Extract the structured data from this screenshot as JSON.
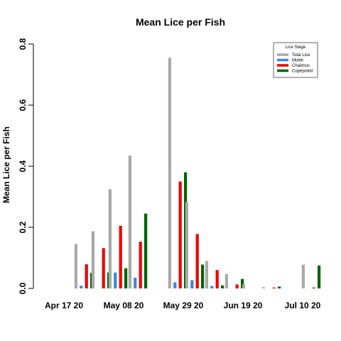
{
  "chart_data": {
    "type": "bar",
    "title": "Mean Lice per Fish",
    "xlabel": "",
    "ylabel": "Mean Lice per Fish",
    "ylim": [
      0,
      0.8
    ],
    "yticks": [
      "0.0",
      "0.2",
      "0.4",
      "0.6",
      "0.8"
    ],
    "xlim": [
      "2020-04-10",
      "2020-07-17"
    ],
    "xticks": [
      {
        "date": "2020-04-17",
        "label": "Apr 17 20"
      },
      {
        "date": "2020-05-08",
        "label": "May 08 20"
      },
      {
        "date": "2020-05-29",
        "label": "May 29 20"
      },
      {
        "date": "2020-06-19",
        "label": "Jun 19 20"
      },
      {
        "date": "2020-07-10",
        "label": "Jul 10 20"
      }
    ],
    "legend": {
      "title": "Lice Stage",
      "position": "top-right",
      "entries": [
        "Total Lice",
        "Motile",
        "Chalimus",
        "Copepodid"
      ]
    },
    "colors": {
      "Total Lice": "#a9a9a9",
      "Motile": "#3a87e0",
      "Chalimus": "#ee0000",
      "Copepodid": "#006400"
    },
    "dates": [
      "2020-04-24",
      "2020-04-30",
      "2020-05-06",
      "2020-05-13",
      "2020-05-27",
      "2020-06-02",
      "2020-06-09",
      "2020-06-16",
      "2020-06-22",
      "2020-06-29",
      "2020-07-13"
    ],
    "series": [
      {
        "name": "Total Lice",
        "values": [
          0.145,
          0.187,
          0.325,
          0.435,
          0.755,
          0.283,
          0.09,
          0.047,
          0.013,
          0.004,
          0.078
        ]
      },
      {
        "name": "Motile",
        "values": [
          0.009,
          0.0,
          0.052,
          0.035,
          0.02,
          0.027,
          0.008,
          0.0,
          0.0,
          0.0,
          0.0
        ]
      },
      {
        "name": "Chalimus",
        "values": [
          0.079,
          0.132,
          0.205,
          0.153,
          0.35,
          0.178,
          0.06,
          0.013,
          0.0,
          0.003,
          0.003
        ]
      },
      {
        "name": "Copepodid",
        "values": [
          0.051,
          0.052,
          0.066,
          0.245,
          0.38,
          0.078,
          0.01,
          0.031,
          0.0,
          0.006,
          0.075
        ]
      }
    ]
  }
}
